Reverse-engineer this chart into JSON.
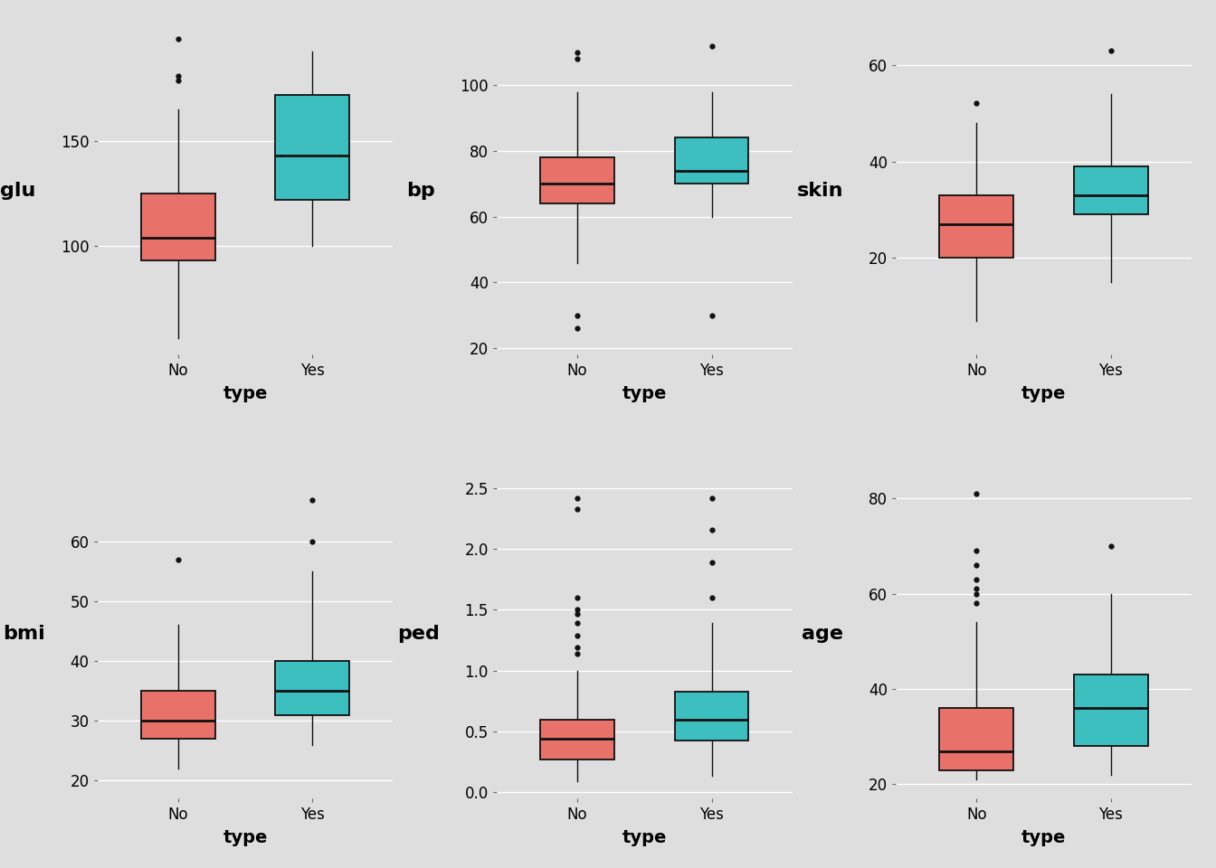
{
  "panels": [
    {
      "ylabel": "glu",
      "xlabel": "type",
      "categories": [
        "No",
        "Yes"
      ],
      "colors": [
        "#E8726A",
        "#3DBFBF"
      ],
      "no": {
        "whisker_low": 56,
        "q1": 93,
        "median": 104,
        "q3": 125,
        "whisker_high": 165,
        "outliers": [
          179,
          181,
          199
        ]
      },
      "yes": {
        "whisker_low": 100,
        "q1": 122,
        "median": 143,
        "q3": 172,
        "whisker_high": 193,
        "outliers": []
      },
      "yticks": [
        100,
        150
      ],
      "ylim": [
        48,
        205
      ]
    },
    {
      "ylabel": "bp",
      "xlabel": "type",
      "categories": [
        "No",
        "Yes"
      ],
      "colors": [
        "#E8726A",
        "#3DBFBF"
      ],
      "no": {
        "whisker_low": 46,
        "q1": 64,
        "median": 70,
        "q3": 78,
        "whisker_high": 98,
        "outliers": [
          26,
          30,
          108,
          110
        ]
      },
      "yes": {
        "whisker_low": 60,
        "q1": 70,
        "median": 74,
        "q3": 84,
        "whisker_high": 98,
        "outliers": [
          30,
          112
        ]
      },
      "yticks": [
        20,
        40,
        60,
        80,
        100
      ],
      "ylim": [
        18,
        118
      ]
    },
    {
      "ylabel": "skin",
      "xlabel": "type",
      "categories": [
        "No",
        "Yes"
      ],
      "colors": [
        "#E8726A",
        "#3DBFBF"
      ],
      "no": {
        "whisker_low": 7,
        "q1": 20,
        "median": 27,
        "q3": 33,
        "whisker_high": 48,
        "outliers": [
          52
        ]
      },
      "yes": {
        "whisker_low": 15,
        "q1": 29,
        "median": 33,
        "q3": 39,
        "whisker_high": 54,
        "outliers": [
          63
        ]
      },
      "yticks": [
        20,
        40,
        60
      ],
      "ylim": [
        0,
        68
      ]
    },
    {
      "ylabel": "bmi",
      "xlabel": "type",
      "categories": [
        "No",
        "Yes"
      ],
      "colors": [
        "#E8726A",
        "#3DBFBF"
      ],
      "no": {
        "whisker_low": 22,
        "q1": 27,
        "median": 30,
        "q3": 35,
        "whisker_high": 46,
        "outliers": [
          57
        ]
      },
      "yes": {
        "whisker_low": 26,
        "q1": 31,
        "median": 35,
        "q3": 40,
        "whisker_high": 55,
        "outliers": [
          60,
          67
        ]
      },
      "yticks": [
        20,
        30,
        40,
        50,
        60
      ],
      "ylim": [
        17,
        72
      ]
    },
    {
      "ylabel": "ped",
      "xlabel": "type",
      "categories": [
        "No",
        "Yes"
      ],
      "colors": [
        "#E8726A",
        "#3DBFBF"
      ],
      "no": {
        "whisker_low": 0.09,
        "q1": 0.27,
        "median": 0.44,
        "q3": 0.6,
        "whisker_high": 1.0,
        "outliers": [
          1.14,
          1.19,
          1.29,
          1.39,
          1.47,
          1.5,
          1.6,
          2.33,
          2.42
        ]
      },
      "yes": {
        "whisker_low": 0.14,
        "q1": 0.43,
        "median": 0.6,
        "q3": 0.83,
        "whisker_high": 1.39,
        "outliers": [
          1.6,
          1.89,
          2.16,
          2.42
        ]
      },
      "yticks": [
        0.0,
        0.5,
        1.0,
        1.5,
        2.0,
        2.5
      ],
      "ylim": [
        -0.05,
        2.65
      ]
    },
    {
      "ylabel": "age",
      "xlabel": "type",
      "categories": [
        "No",
        "Yes"
      ],
      "colors": [
        "#E8726A",
        "#3DBFBF"
      ],
      "no": {
        "whisker_low": 21,
        "q1": 23,
        "median": 27,
        "q3": 36,
        "whisker_high": 54,
        "outliers": [
          58,
          60,
          61,
          63,
          66,
          69,
          81
        ]
      },
      "yes": {
        "whisker_low": 22,
        "q1": 28,
        "median": 36,
        "q3": 43,
        "whisker_high": 60,
        "outliers": [
          70
        ]
      },
      "yticks": [
        20,
        40,
        60,
        80
      ],
      "ylim": [
        17,
        86
      ]
    }
  ],
  "bg_color": "#DEDEDE",
  "box_width": 0.55,
  "line_color": "#111111",
  "whisker_color": "#111111",
  "median_color": "#111111",
  "outlier_color": "#111111",
  "grid_color": "#FFFFFF",
  "tick_fontsize": 12,
  "ylabel_fontsize": 16,
  "xlabel_fontsize": 14
}
